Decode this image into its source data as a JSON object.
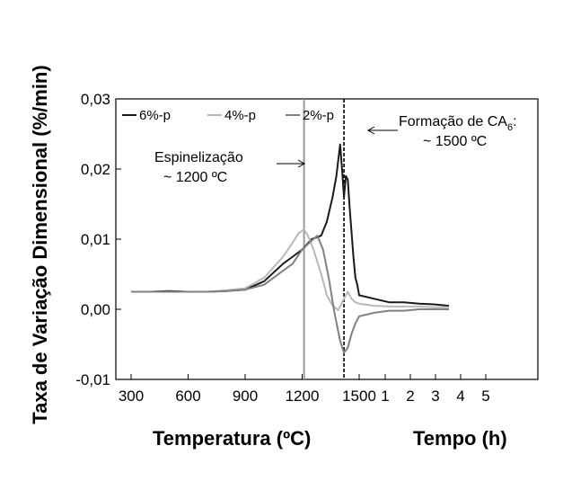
{
  "chart_data": {
    "type": "line",
    "ylabel": "Taxa de Variação Dimensional (%/min)",
    "xlabel_left": "Temperatura (ºC)",
    "xlabel_right": "Tempo (h)",
    "xticks_temperature": [
      "300",
      "600",
      "900",
      "1200",
      "1500"
    ],
    "xticks_time": [
      "1",
      "2",
      "3",
      "4",
      "5"
    ],
    "yticks": [
      "0,03",
      "0,02",
      "0,01",
      "0,00",
      "-0,01"
    ],
    "ylim": [
      -0.01,
      0.03
    ],
    "legend_position": "top-left",
    "annotations": {
      "spinel": {
        "line1": "Espinelização",
        "line2": "~ 1200 ºC",
        "temperature": 1210
      },
      "ca6": {
        "line1": "Formação de CA",
        "subscript": "6",
        "suffix": ":",
        "line2": "~ 1500 ºC",
        "temperature": 1420
      }
    },
    "series": [
      {
        "name": "6%-p",
        "color": "#1a1a1a",
        "x": [
          300,
          400,
          500,
          600,
          700,
          800,
          900,
          1000,
          1100,
          1150,
          1200,
          1250,
          1300,
          1330,
          1360,
          1380,
          1400,
          1410,
          1420,
          1430,
          1440,
          1450,
          1460,
          1470,
          1480,
          1490,
          1500,
          1550,
          1600,
          1650,
          1700,
          1750,
          1800
        ],
        "y": [
          0.0025,
          0.0025,
          0.0026,
          0.0025,
          0.0025,
          0.0026,
          0.0028,
          0.004,
          0.0065,
          0.0075,
          0.0085,
          0.01,
          0.0105,
          0.0125,
          0.016,
          0.019,
          0.0235,
          0.02,
          0.016,
          0.019,
          0.0185,
          0.0145,
          0.011,
          0.0075,
          0.0045,
          0.0035,
          0.002,
          0.0015,
          0.001,
          0.001,
          0.0008,
          0.0007,
          0.0005
        ]
      },
      {
        "name": "4%-p",
        "color": "#b8b8b8",
        "x": [
          300,
          400,
          500,
          600,
          700,
          800,
          900,
          1000,
          1100,
          1150,
          1180,
          1210,
          1230,
          1260,
          1300,
          1330,
          1360,
          1390,
          1420,
          1440,
          1460,
          1480,
          1500,
          1550,
          1600,
          1650,
          1700,
          1750,
          1800
        ],
        "y": [
          0.0025,
          0.0025,
          0.0025,
          0.0025,
          0.0025,
          0.0027,
          0.003,
          0.0045,
          0.0075,
          0.0095,
          0.0108,
          0.0114,
          0.0105,
          0.0085,
          0.005,
          0.002,
          0.0005,
          -0.0001,
          0.0015,
          0.0025,
          0.0015,
          0.001,
          0.0008,
          0.0005,
          0.0004,
          0.0004,
          0.0004,
          0.0003,
          0.0003
        ]
      },
      {
        "name": "2%-p",
        "color": "#808080",
        "x": [
          300,
          400,
          500,
          600,
          700,
          800,
          900,
          1000,
          1100,
          1150,
          1200,
          1250,
          1280,
          1310,
          1340,
          1370,
          1400,
          1420,
          1440,
          1460,
          1480,
          1500,
          1550,
          1600,
          1650,
          1700,
          1750,
          1800
        ],
        "y": [
          0.0025,
          0.0025,
          0.0025,
          0.0025,
          0.0025,
          0.0026,
          0.0028,
          0.0035,
          0.0055,
          0.0065,
          0.0085,
          0.0098,
          0.0105,
          0.0085,
          0.0045,
          -0.0005,
          -0.0045,
          -0.0062,
          -0.0055,
          -0.0035,
          -0.002,
          -0.001,
          -0.0005,
          -0.0002,
          -0.0002,
          0.0,
          0.0,
          0.0
        ]
      }
    ]
  }
}
